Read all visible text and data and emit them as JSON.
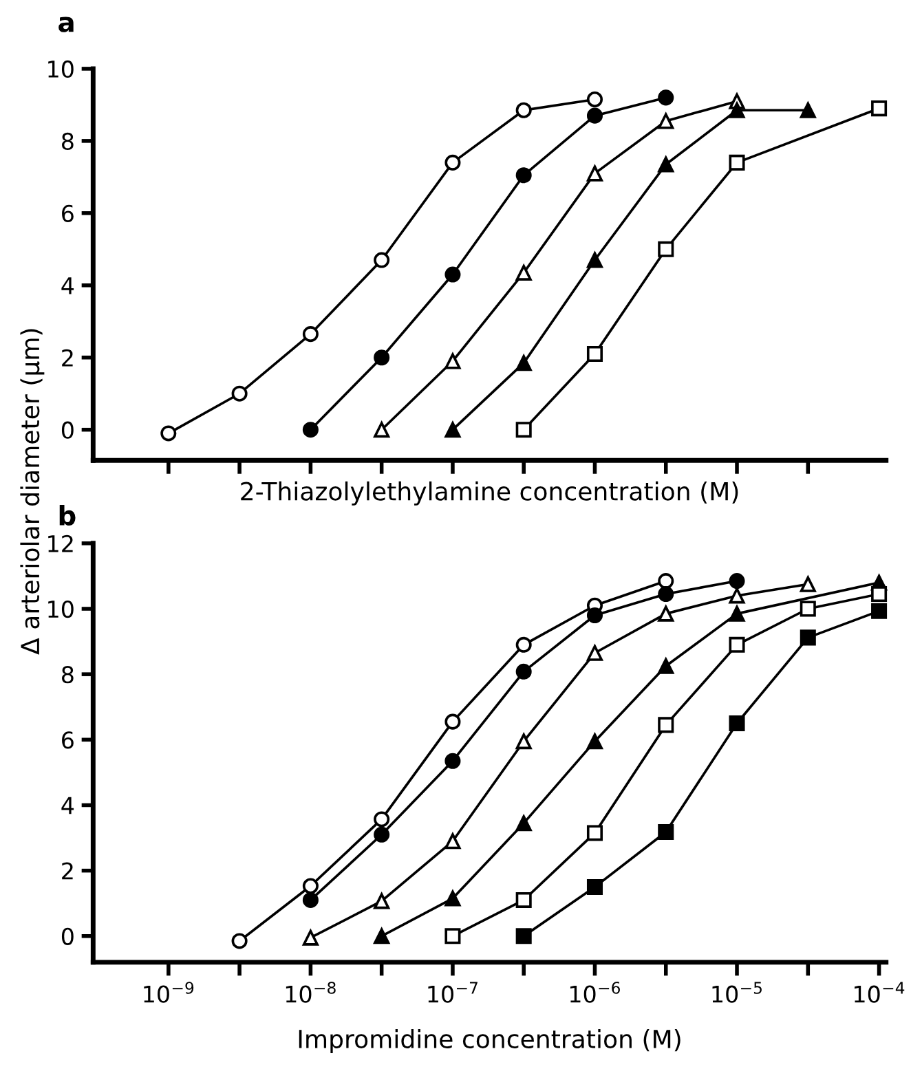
{
  "chart_data": [
    {
      "type": "line",
      "title": "a",
      "xlabel": "2-Thiazolylethylamine concentration (M)",
      "ylabel": "Δ arteriolar diameter (μm)",
      "log": "x",
      "tick_labels": "y",
      "grid": false,
      "legend": false,
      "line_style": "solid",
      "xlim": [
        2.95e-10,
        0.000112
      ],
      "ylim": [
        -0.85,
        10
      ],
      "yticks": [
        0,
        2,
        4,
        6,
        8,
        10
      ],
      "xticks": [
        {
          "value": 1e-09,
          "label": null
        },
        {
          "value": 3.162e-09,
          "label": null
        },
        {
          "value": 1e-08,
          "label": null
        },
        {
          "value": 3.162e-08,
          "label": null
        },
        {
          "value": 1e-07,
          "label": null
        },
        {
          "value": 3.162e-07,
          "label": null
        },
        {
          "value": 1e-06,
          "label": null
        },
        {
          "value": 3.162e-06,
          "label": null
        },
        {
          "value": 1e-05,
          "label": null
        },
        {
          "value": 3.162e-05,
          "label": null
        }
      ],
      "series": [
        {
          "marker": "circle",
          "color": "#ffffff",
          "x": [
            1e-09,
            3.162e-09,
            1e-08,
            3.162e-08,
            1e-07,
            3.162e-07,
            1e-06
          ],
          "values": [
            -0.1,
            1.0,
            2.65,
            4.7,
            7.4,
            8.85,
            9.15
          ]
        },
        {
          "marker": "circle",
          "color": "#000000",
          "x": [
            1e-08,
            3.162e-08,
            1e-07,
            3.162e-07,
            1e-06,
            3.162e-06
          ],
          "values": [
            0,
            2.0,
            4.3,
            7.05,
            8.7,
            9.2
          ]
        },
        {
          "marker": "triangle",
          "color": "#ffffff",
          "x": [
            3.162e-08,
            1e-07,
            3.162e-07,
            1e-06,
            3.162e-06,
            1e-05
          ],
          "values": [
            0,
            1.9,
            4.35,
            7.1,
            8.55,
            9.1
          ]
        },
        {
          "marker": "triangle",
          "color": "#000000",
          "x": [
            1e-07,
            3.162e-07,
            1e-06,
            3.162e-06,
            1e-05,
            3.162e-05
          ],
          "values": [
            0,
            1.85,
            4.7,
            7.35,
            8.85,
            8.85
          ]
        },
        {
          "marker": "square",
          "color": "#ffffff",
          "x": [
            3.162e-07,
            1e-06,
            3.162e-06,
            1e-05,
            0.0001
          ],
          "values": [
            0,
            2.1,
            5.0,
            7.4,
            8.9
          ]
        }
      ]
    },
    {
      "type": "line",
      "title": "b",
      "xlabel": "Impromidine concentration (M)",
      "log": "x",
      "grid": false,
      "legend": false,
      "line_style": "solid",
      "xlim": [
        2.95e-10,
        0.000112
      ],
      "ylim": [
        -0.8,
        12
      ],
      "yticks": [
        0,
        2,
        4,
        6,
        8,
        10,
        12
      ],
      "xticks": [
        {
          "value": 1e-09,
          "label": "10$^{−9}$"
        },
        {
          "value": 3.162e-09,
          "label": null
        },
        {
          "value": 1e-08,
          "label": "10$^{−8}$"
        },
        {
          "value": 3.162e-08,
          "label": null
        },
        {
          "value": 1e-07,
          "label": "10$^{−7}$"
        },
        {
          "value": 3.162e-07,
          "label": null
        },
        {
          "value": 1e-06,
          "label": "10$^{−6}$"
        },
        {
          "value": 3.162e-06,
          "label": null
        },
        {
          "value": 1e-05,
          "label": "10$^{−5}$"
        },
        {
          "value": 3.162e-05,
          "label": null
        },
        {
          "value": 0.0001,
          "label": "10$^{−4}$"
        }
      ],
      "series": [
        {
          "marker": "circle",
          "color": "#ffffff",
          "x": [
            3.162e-09,
            1e-08,
            3.162e-08,
            1e-07,
            3.162e-07,
            1e-06,
            3.162e-06
          ],
          "values": [
            -0.15,
            1.53,
            3.57,
            6.55,
            8.9,
            10.1,
            10.85
          ]
        },
        {
          "marker": "circle",
          "color": "#000000",
          "x": [
            1e-08,
            3.162e-08,
            1e-07,
            3.162e-07,
            1e-06,
            3.162e-06,
            1e-05
          ],
          "values": [
            1.1,
            3.1,
            5.35,
            8.08,
            9.8,
            10.45,
            10.85
          ]
        },
        {
          "marker": "triangle",
          "color": "#ffffff",
          "x": [
            1e-08,
            3.162e-08,
            1e-07,
            3.162e-07,
            1e-06,
            3.162e-06,
            1e-05,
            3.162e-05
          ],
          "values": [
            -0.05,
            1.07,
            2.9,
            5.95,
            8.65,
            9.85,
            10.4,
            10.75
          ]
        },
        {
          "marker": "triangle",
          "color": "#000000",
          "x": [
            3.162e-08,
            1e-07,
            3.162e-07,
            1e-06,
            3.162e-06,
            1e-05,
            0.0001
          ],
          "values": [
            0,
            1.15,
            3.45,
            5.95,
            8.25,
            9.85,
            10.8
          ]
        },
        {
          "marker": "square",
          "color": "#ffffff",
          "x": [
            1e-07,
            3.162e-07,
            1e-06,
            3.162e-06,
            1e-05,
            3.162e-05,
            0.0001
          ],
          "values": [
            0,
            1.1,
            3.15,
            6.45,
            8.9,
            10.0,
            10.45
          ]
        },
        {
          "marker": "square",
          "color": "#000000",
          "x": [
            3.162e-07,
            1e-06,
            3.162e-06,
            1e-05,
            3.162e-05,
            0.0001
          ],
          "values": [
            0,
            1.5,
            3.18,
            6.5,
            9.12,
            9.93
          ]
        }
      ]
    }
  ]
}
